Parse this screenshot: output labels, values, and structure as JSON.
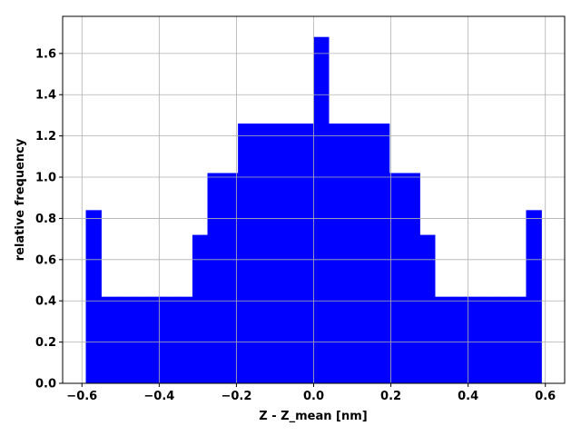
{
  "chart_data": {
    "type": "bar",
    "title": "",
    "xlabel": "Z - Z_mean [nm]",
    "ylabel": "relative frequency",
    "xlim": [
      -0.65,
      0.65
    ],
    "ylim": [
      0.0,
      1.78
    ],
    "grid": true,
    "bar_color": "#0000ff",
    "xticks": [
      -0.6,
      -0.4,
      -0.2,
      0.0,
      0.2,
      0.4,
      0.6
    ],
    "xtick_labels": [
      "−0.6",
      "−0.4",
      "−0.2",
      "0.0",
      "0.2",
      "0.4",
      "0.6"
    ],
    "yticks": [
      0.0,
      0.2,
      0.4,
      0.6,
      0.8,
      1.0,
      1.2,
      1.4,
      1.6
    ],
    "ytick_labels": [
      "0.0",
      "0.2",
      "0.4",
      "0.6",
      "0.8",
      "1.0",
      "1.2",
      "1.4",
      "1.6"
    ],
    "bins": [
      {
        "x0": -0.59,
        "x1": -0.55,
        "value": 0.84
      },
      {
        "x0": -0.55,
        "x1": -0.511,
        "value": 0.42
      },
      {
        "x0": -0.511,
        "x1": -0.472,
        "value": 0.42
      },
      {
        "x0": -0.472,
        "x1": -0.432,
        "value": 0.42
      },
      {
        "x0": -0.432,
        "x1": -0.393,
        "value": 0.42
      },
      {
        "x0": -0.393,
        "x1": -0.354,
        "value": 0.42
      },
      {
        "x0": -0.354,
        "x1": -0.314,
        "value": 0.42
      },
      {
        "x0": -0.314,
        "x1": -0.275,
        "value": 0.72
      },
      {
        "x0": -0.275,
        "x1": -0.236,
        "value": 1.02
      },
      {
        "x0": -0.236,
        "x1": -0.196,
        "value": 1.02
      },
      {
        "x0": -0.196,
        "x1": -0.157,
        "value": 1.26
      },
      {
        "x0": -0.157,
        "x1": -0.118,
        "value": 1.26
      },
      {
        "x0": -0.118,
        "x1": -0.079,
        "value": 1.26
      },
      {
        "x0": -0.079,
        "x1": -0.039,
        "value": 1.26
      },
      {
        "x0": -0.039,
        "x1": 0.0,
        "value": 1.26
      },
      {
        "x0": 0.0,
        "x1": 0.039,
        "value": 1.68
      },
      {
        "x0": 0.039,
        "x1": 0.079,
        "value": 1.26
      },
      {
        "x0": 0.079,
        "x1": 0.118,
        "value": 1.26
      },
      {
        "x0": 0.118,
        "x1": 0.157,
        "value": 1.26
      },
      {
        "x0": 0.157,
        "x1": 0.196,
        "value": 1.26
      },
      {
        "x0": 0.196,
        "x1": 0.236,
        "value": 1.02
      },
      {
        "x0": 0.236,
        "x1": 0.275,
        "value": 1.02
      },
      {
        "x0": 0.275,
        "x1": 0.314,
        "value": 0.72
      },
      {
        "x0": 0.314,
        "x1": 0.354,
        "value": 0.42
      },
      {
        "x0": 0.354,
        "x1": 0.393,
        "value": 0.42
      },
      {
        "x0": 0.393,
        "x1": 0.432,
        "value": 0.42
      },
      {
        "x0": 0.432,
        "x1": 0.472,
        "value": 0.42
      },
      {
        "x0": 0.472,
        "x1": 0.511,
        "value": 0.42
      },
      {
        "x0": 0.511,
        "x1": 0.55,
        "value": 0.42
      },
      {
        "x0": 0.55,
        "x1": 0.59,
        "value": 0.84
      }
    ]
  }
}
